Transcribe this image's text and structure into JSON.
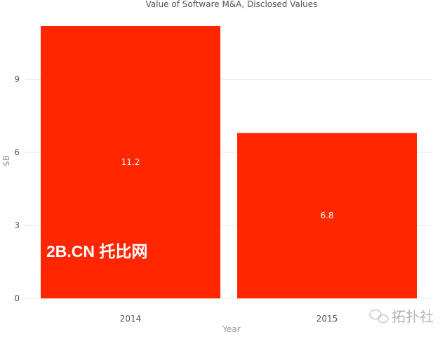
{
  "chart_data": {
    "type": "bar",
    "title": "Value of Software M&A, Disclosed Values",
    "xlabel": "Year",
    "ylabel": "$B",
    "categories": [
      "2014",
      "2015"
    ],
    "values": [
      11.2,
      6.8
    ],
    "data_labels": [
      "11.2",
      "6.8"
    ],
    "y_ticks": [
      0,
      3,
      6,
      9
    ],
    "ylim": [
      0,
      11.2
    ],
    "grid": true,
    "legend": "none",
    "bar_color": "#ff2600",
    "grid_color": "#e6e6e6"
  },
  "watermark": {
    "text": "2B.CN 托比网",
    "brand": "拓扑社"
  }
}
